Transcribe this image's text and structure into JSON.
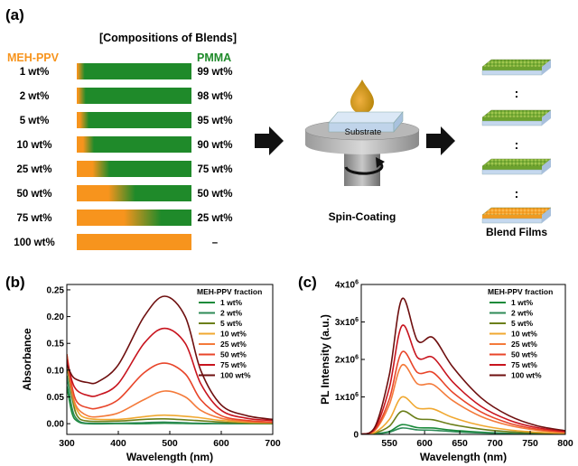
{
  "panel_a": {
    "label": "(a)",
    "title": "[Compositions of Blends]",
    "left_header": "MEH-PPV",
    "right_header": "PMMA",
    "rows": [
      {
        "left": "1 wt%",
        "right": "99 wt%",
        "frac": 0.01
      },
      {
        "left": "2 wt%",
        "right": "98 wt%",
        "frac": 0.02
      },
      {
        "left": "5 wt%",
        "right": "95 wt%",
        "frac": 0.05
      },
      {
        "left": "10 wt%",
        "right": "90 wt%",
        "frac": 0.1
      },
      {
        "left": "25 wt%",
        "right": "75 wt%",
        "frac": 0.25
      },
      {
        "left": "50 wt%",
        "right": "50 wt%",
        "frac": 0.5
      },
      {
        "left": "75 wt%",
        "right": "25 wt%",
        "frac": 0.75
      },
      {
        "left": "100 wt%",
        "right": "–",
        "frac": 1.0
      }
    ],
    "substrate_label": "Substrate",
    "process_label": "Spin-Coating",
    "result_label": "Blend Films",
    "dots": ":",
    "colors": {
      "meh_ppv": "#f7941d",
      "pmma": "#1f8a2a",
      "substrate": "#c9dcf0"
    }
  },
  "panel_b": {
    "label": "(b)"
  },
  "panel_c": {
    "label": "(c)"
  },
  "chart_data": [
    {
      "type": "line",
      "xlabel": "Wavelength (nm)",
      "ylabel": "Absorbance",
      "xlim": [
        300,
        700
      ],
      "ylim": [
        -0.02,
        0.26
      ],
      "xticks": [
        300,
        400,
        500,
        600,
        700
      ],
      "yticks": [
        0.0,
        0.05,
        0.1,
        0.15,
        0.2,
        0.25
      ],
      "ytick_labels": [
        "0.00",
        "0.05",
        "0.10",
        "0.15",
        "0.20",
        "0.25"
      ],
      "legend_title": "MEH-PPV fraction",
      "legend_position": "top-right",
      "series": [
        {
          "name": "1 wt%",
          "color": "#1a8a3a",
          "x": [
            300,
            310,
            320,
            340,
            400,
            450,
            490,
            550,
            600,
            650,
            700
          ],
          "y": [
            0.07,
            0.02,
            0.005,
            0.0,
            0.0,
            0.0,
            0.001,
            0.0,
            0.0,
            0.0,
            0.0
          ]
        },
        {
          "name": "2 wt%",
          "color": "#2e8b57",
          "x": [
            300,
            310,
            320,
            340,
            400,
            450,
            490,
            550,
            600,
            650,
            700
          ],
          "y": [
            0.09,
            0.03,
            0.008,
            0.001,
            0.001,
            0.002,
            0.003,
            0.001,
            0.0,
            0.0,
            0.0
          ]
        },
        {
          "name": "5 wt%",
          "color": "#6b7f1a",
          "x": [
            300,
            310,
            320,
            340,
            400,
            450,
            490,
            550,
            600,
            650,
            700
          ],
          "y": [
            0.11,
            0.05,
            0.015,
            0.005,
            0.005,
            0.008,
            0.009,
            0.006,
            0.003,
            0.001,
            0.0
          ]
        },
        {
          "name": "10 wt%",
          "color": "#f0a830",
          "x": [
            300,
            310,
            320,
            340,
            400,
            450,
            490,
            550,
            600,
            650,
            700
          ],
          "y": [
            0.13,
            0.06,
            0.025,
            0.01,
            0.008,
            0.013,
            0.016,
            0.012,
            0.006,
            0.003,
            0.002
          ]
        },
        {
          "name": "25 wt%",
          "color": "#f47a3a",
          "x": [
            300,
            310,
            320,
            340,
            360,
            400,
            450,
            490,
            530,
            560,
            600,
            650,
            700
          ],
          "y": [
            0.12,
            0.06,
            0.03,
            0.015,
            0.013,
            0.02,
            0.045,
            0.061,
            0.05,
            0.025,
            0.01,
            0.004,
            0.002
          ]
        },
        {
          "name": "50 wt%",
          "color": "#e8452a",
          "x": [
            300,
            310,
            320,
            340,
            360,
            400,
            450,
            490,
            530,
            560,
            600,
            650,
            700
          ],
          "y": [
            0.13,
            0.07,
            0.04,
            0.03,
            0.029,
            0.045,
            0.095,
            0.113,
            0.093,
            0.045,
            0.015,
            0.006,
            0.003
          ]
        },
        {
          "name": "75 wt%",
          "color": "#c8141e",
          "x": [
            300,
            310,
            320,
            340,
            360,
            400,
            450,
            490,
            530,
            560,
            600,
            650,
            700
          ],
          "y": [
            0.12,
            0.08,
            0.062,
            0.053,
            0.053,
            0.075,
            0.15,
            0.178,
            0.15,
            0.075,
            0.025,
            0.01,
            0.006
          ]
        },
        {
          "name": "100 wt%",
          "color": "#6e0f0f",
          "x": [
            300,
            310,
            320,
            340,
            360,
            400,
            450,
            490,
            530,
            560,
            600,
            650,
            700
          ],
          "y": [
            0.11,
            0.09,
            0.082,
            0.077,
            0.078,
            0.11,
            0.2,
            0.238,
            0.2,
            0.1,
            0.035,
            0.015,
            0.008
          ]
        }
      ]
    },
    {
      "type": "line",
      "xlabel": "Wavelength (nm)",
      "ylabel": "PL Intensity (a.u.)",
      "xlim": [
        510,
        800
      ],
      "ylim": [
        0,
        4000000
      ],
      "xticks": [
        550,
        600,
        650,
        700,
        750,
        800
      ],
      "yticks": [
        0,
        1000000,
        2000000,
        3000000,
        4000000
      ],
      "ytick_labels": [
        "0",
        "1x10⁶",
        "2x10⁶",
        "3x10⁶",
        "4x10⁶"
      ],
      "legend_title": "MEH-PPV fraction",
      "legend_position": "top-right",
      "series": [
        {
          "name": "1 wt%",
          "color": "#1a8a3a",
          "x": [
            510,
            530,
            550,
            568,
            590,
            612,
            640,
            680,
            720,
            760,
            800
          ],
          "y": [
            0,
            20000,
            80000,
            260000,
            180000,
            170000,
            110000,
            60000,
            30000,
            15000,
            8000
          ]
        },
        {
          "name": "2 wt%",
          "color": "#2e8b57",
          "x": [
            510,
            530,
            550,
            568,
            590,
            612,
            640,
            680,
            720,
            760,
            800
          ],
          "y": [
            0,
            15000,
            60000,
            170000,
            120000,
            110000,
            75000,
            40000,
            20000,
            10000,
            5000
          ]
        },
        {
          "name": "5 wt%",
          "color": "#6b7f1a",
          "x": [
            510,
            530,
            550,
            568,
            590,
            612,
            640,
            680,
            720,
            760,
            800
          ],
          "y": [
            0,
            40000,
            220000,
            620000,
            420000,
            390000,
            260000,
            140000,
            70000,
            35000,
            15000
          ]
        },
        {
          "name": "10 wt%",
          "color": "#f0a830",
          "x": [
            510,
            530,
            550,
            568,
            590,
            612,
            640,
            680,
            720,
            760,
            800
          ],
          "y": [
            0,
            60000,
            400000,
            1000000,
            700000,
            680000,
            450000,
            240000,
            120000,
            60000,
            25000
          ]
        },
        {
          "name": "25 wt%",
          "color": "#f47a3a",
          "x": [
            510,
            530,
            550,
            568,
            590,
            612,
            640,
            680,
            720,
            760,
            800
          ],
          "y": [
            0,
            120000,
            800000,
            1850000,
            1350000,
            1330000,
            900000,
            480000,
            240000,
            110000,
            50000
          ]
        },
        {
          "name": "50 wt%",
          "color": "#e8452a",
          "x": [
            510,
            530,
            550,
            568,
            590,
            612,
            640,
            680,
            720,
            760,
            800
          ],
          "y": [
            0,
            140000,
            950000,
            2200000,
            1650000,
            1650000,
            1120000,
            600000,
            300000,
            140000,
            60000
          ]
        },
        {
          "name": "75 wt%",
          "color": "#c8141e",
          "x": [
            510,
            530,
            550,
            568,
            590,
            612,
            640,
            680,
            720,
            760,
            800
          ],
          "y": [
            0,
            180000,
            1250000,
            2900000,
            2050000,
            2050000,
            1400000,
            750000,
            380000,
            180000,
            80000
          ]
        },
        {
          "name": "100 wt%",
          "color": "#6e0f0f",
          "x": [
            510,
            530,
            550,
            568,
            590,
            612,
            640,
            680,
            720,
            760,
            800
          ],
          "y": [
            0,
            220000,
            1600000,
            3620000,
            2500000,
            2580000,
            1800000,
            980000,
            500000,
            230000,
            100000
          ]
        }
      ]
    }
  ]
}
